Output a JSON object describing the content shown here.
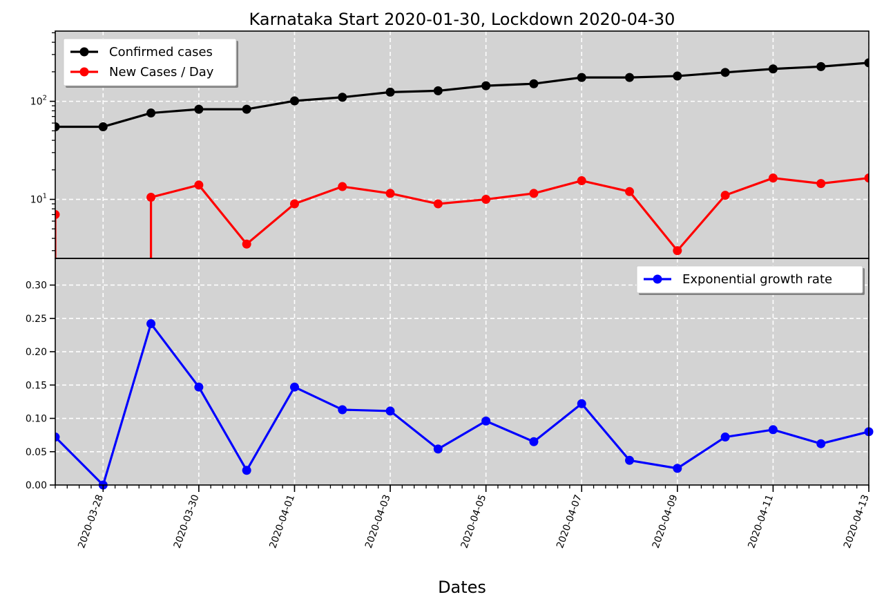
{
  "chart_data": [
    {
      "type": "line",
      "title": "Karnataka Start 2020-01-30, Lockdown 2020-04-30",
      "xlabel": "",
      "ylabel": "",
      "yscale": "log",
      "ylim": [
        2.5,
        520
      ],
      "xlim": [
        "2020-03-27",
        "2020-04-13"
      ],
      "yticks": [
        10,
        100
      ],
      "ytick_labels": [
        "10^1",
        "10^2"
      ],
      "x": [
        "2020-03-27",
        "2020-03-28",
        "2020-03-29",
        "2020-03-30",
        "2020-03-31",
        "2020-04-01",
        "2020-04-02",
        "2020-04-03",
        "2020-04-04",
        "2020-04-05",
        "2020-04-06",
        "2020-04-07",
        "2020-04-08",
        "2020-04-09",
        "2020-04-10",
        "2020-04-11",
        "2020-04-12",
        "2020-04-13"
      ],
      "series": [
        {
          "name": "Confirmed cases",
          "color": "#000000",
          "values": [
            55,
            55,
            76,
            83,
            83,
            101,
            110,
            124,
            128,
            144,
            151,
            175,
            175,
            181,
            197,
            214,
            226,
            247
          ]
        },
        {
          "name": "New Cases / Day",
          "color": "#ff0000",
          "values": [
            7,
            null,
            10.5,
            14,
            3.5,
            9,
            13.5,
            11.5,
            9,
            10,
            11.5,
            15.5,
            12,
            3,
            11,
            16.5,
            14.5,
            16.5
          ]
        }
      ],
      "grid": true,
      "legend": "top-left",
      "background": "#d3d3d3"
    },
    {
      "type": "line",
      "title": "",
      "xlabel": "Dates",
      "ylabel": "",
      "ylim": [
        0,
        0.34
      ],
      "yticks": [
        0,
        0.05,
        0.1,
        0.15,
        0.2,
        0.25,
        0.3
      ],
      "ytick_labels": [
        "0.00",
        "0.05",
        "0.10",
        "0.15",
        "0.20",
        "0.25",
        "0.30"
      ],
      "xlim": [
        "2020-03-27",
        "2020-04-13"
      ],
      "xticks": [
        "2020-03-28",
        "2020-03-30",
        "2020-04-01",
        "2020-04-03",
        "2020-04-05",
        "2020-04-07",
        "2020-04-09",
        "2020-04-11",
        "2020-04-13"
      ],
      "x": [
        "2020-03-27",
        "2020-03-28",
        "2020-03-29",
        "2020-03-30",
        "2020-03-31",
        "2020-04-01",
        "2020-04-02",
        "2020-04-03",
        "2020-04-04",
        "2020-04-05",
        "2020-04-06",
        "2020-04-07",
        "2020-04-08",
        "2020-04-09",
        "2020-04-10",
        "2020-04-11",
        "2020-04-12",
        "2020-04-13"
      ],
      "series": [
        {
          "name": "Exponential growth rate",
          "color": "#0000ff",
          "values": [
            0.072,
            0.0,
            0.242,
            0.147,
            0.022,
            0.147,
            0.113,
            0.111,
            0.054,
            0.096,
            0.065,
            0.122,
            0.037,
            0.025,
            0.072,
            0.083,
            0.062,
            0.08
          ]
        }
      ],
      "grid": true,
      "legend": "top-right",
      "background": "#d3d3d3"
    }
  ]
}
